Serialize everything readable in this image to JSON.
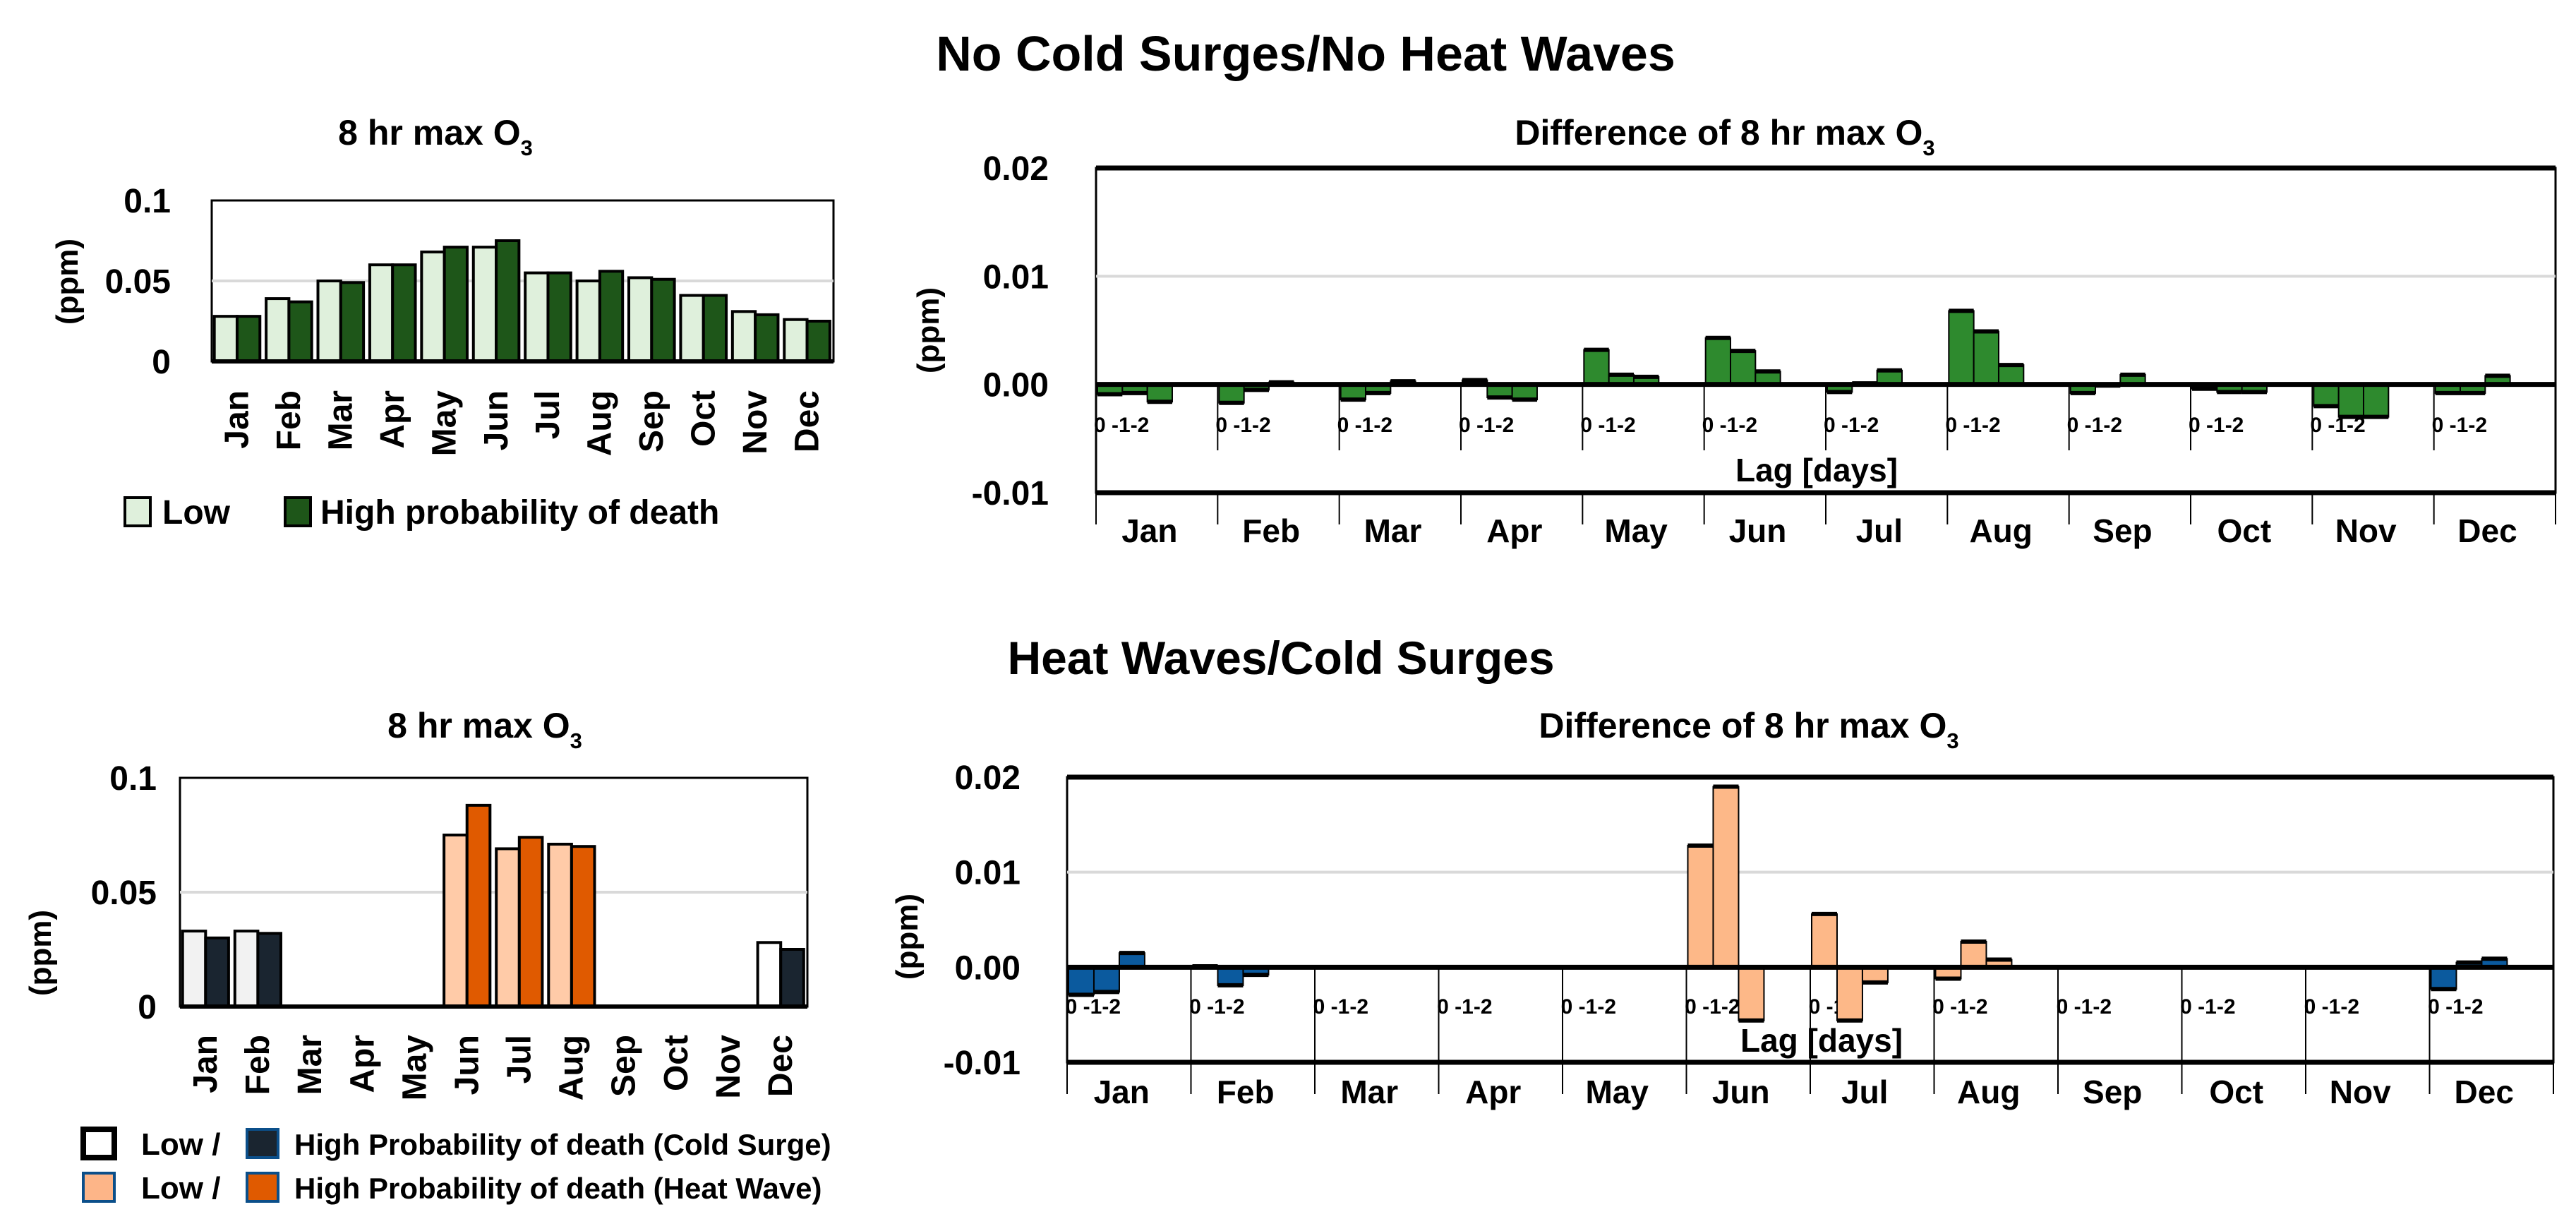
{
  "headings": {
    "top": "No Cold Surges/No Heat Waves",
    "bottom": "Heat Waves/Cold Surges"
  },
  "chart_data": [
    {
      "type": "bar",
      "title": "8 hr max O",
      "title_sub": "3",
      "ylabel": "(ppm)",
      "ylim": [
        0,
        0.1
      ],
      "yticks": [
        0,
        0.05,
        0.1
      ],
      "ytick_labels": [
        "0",
        "0.05",
        "0.1"
      ],
      "grid": [
        0.05
      ],
      "categories": [
        "Jan",
        "Feb",
        "Mar",
        "Apr",
        "May",
        "Jun",
        "Jul",
        "Aug",
        "Sep",
        "Oct",
        "Nov",
        "Dec"
      ],
      "series": [
        {
          "name": "Low",
          "color": "#dff0dc",
          "values": [
            0.028,
            0.039,
            0.05,
            0.06,
            0.068,
            0.071,
            0.055,
            0.05,
            0.052,
            0.041,
            0.031,
            0.026
          ]
        },
        {
          "name": "High probability of death",
          "color": "#1e5619",
          "values": [
            0.028,
            0.037,
            0.049,
            0.06,
            0.071,
            0.075,
            0.055,
            0.056,
            0.051,
            0.041,
            0.029,
            0.025
          ]
        }
      ],
      "legend": {
        "placement": "bottom",
        "items": [
          "Low",
          "High probability of death"
        ]
      }
    },
    {
      "type": "bar",
      "title": "Difference of 8 hr max O",
      "title_sub": "3",
      "ylabel": "(ppm)",
      "xlabel": "Lag [days]",
      "lag_label": "0 -1-2",
      "ylim": [
        -0.01,
        0.02
      ],
      "yticks": [
        -0.01,
        0,
        0.01,
        0.02
      ],
      "ytick_labels": [
        "-0.01",
        "0.00",
        "0.01",
        "0.02"
      ],
      "grid": [
        0.01
      ],
      "categories": [
        "Jan",
        "Feb",
        "Mar",
        "Apr",
        "May",
        "Jun",
        "Jul",
        "Aug",
        "Sep",
        "Oct",
        "Nov",
        "Dec"
      ],
      "bar_colors": [
        "#2e8a2e",
        "#2e8a2e",
        "#2e8a2e",
        "#2e8a2e",
        "#2e8a2e",
        "#2e8a2e",
        "#2e8a2e",
        "#2e8a2e",
        "#2e8a2e",
        "#2e8a2e",
        "#2e8a2e",
        "#2e8a2e"
      ],
      "series": [
        {
          "name": "Lag 0",
          "values": [
            -0.0009,
            -0.0017,
            -0.0014,
            0.0004,
            0.0032,
            0.0043,
            -0.0007,
            0.0068,
            -0.0008,
            -0.0004,
            -0.002,
            -0.0008
          ]
        },
        {
          "name": "Lag 1",
          "values": [
            -0.0008,
            -0.0005,
            -0.0008,
            -0.0012,
            0.0009,
            0.0031,
            0.0001,
            0.0049,
            -0.0001,
            -0.0007,
            -0.003,
            -0.0008
          ]
        },
        {
          "name": "Lag 2",
          "values": [
            -0.0016,
            0.0002,
            0.0003,
            -0.0014,
            0.0007,
            0.0012,
            0.0013,
            0.0018,
            0.0009,
            -0.0007,
            -0.003,
            0.0008
          ]
        }
      ]
    },
    {
      "type": "bar",
      "title": "8 hr max O",
      "title_sub": "3",
      "ylabel": "(ppm)",
      "ylim": [
        0,
        0.1
      ],
      "yticks": [
        0,
        0.05,
        0.1
      ],
      "ytick_labels": [
        "0",
        "0.05",
        "0.1"
      ],
      "grid": [
        0.05
      ],
      "categories": [
        "Jan",
        "Feb",
        "Mar",
        "Apr",
        "May",
        "Jun",
        "Jul",
        "Aug",
        "Sep",
        "Oct",
        "Nov",
        "Dec"
      ],
      "low_colors": [
        "#f2f2f2",
        "#f2f2f2",
        null,
        null,
        null,
        "#ffcba8",
        "#ffcba8",
        "#ffcba8",
        null,
        null,
        null,
        "#ffffff"
      ],
      "high_colors": [
        "#1a2530",
        "#1a2530",
        null,
        null,
        null,
        "#e05a00",
        "#e05a00",
        "#e05a00",
        null,
        null,
        null,
        "#1a2530"
      ],
      "series": [
        {
          "name": "Low",
          "values": [
            0.033,
            0.033,
            null,
            null,
            null,
            0.075,
            0.069,
            0.071,
            null,
            null,
            null,
            0.028
          ]
        },
        {
          "name": "High",
          "values": [
            0.03,
            0.032,
            null,
            null,
            null,
            0.088,
            0.074,
            0.07,
            null,
            null,
            null,
            0.025
          ]
        }
      ],
      "legend": {
        "placement": "bottom",
        "rows": [
          {
            "low": "Low /",
            "high": "High Probability of death (Cold Surge)",
            "low_color": "#ffffff",
            "high_color": "#1a2530"
          },
          {
            "low": "Low /",
            "high": "High Probability of death (Heat Wave)",
            "low_color": "#fdb588",
            "high_color": "#e05a00"
          }
        ]
      }
    },
    {
      "type": "bar",
      "title": "Difference of 8 hr max O",
      "title_sub": "3",
      "ylabel": "(ppm)",
      "xlabel": "Lag [days]",
      "lag_label": "0 -1-2",
      "ylim": [
        -0.01,
        0.02
      ],
      "yticks": [
        -0.01,
        0,
        0.01,
        0.02
      ],
      "ytick_labels": [
        "-0.01",
        "0.00",
        "0.01",
        "0.02"
      ],
      "grid": [
        0.01
      ],
      "categories": [
        "Jan",
        "Feb",
        "Mar",
        "Apr",
        "May",
        "Jun",
        "Jul",
        "Aug",
        "Sep",
        "Oct",
        "Nov",
        "Dec"
      ],
      "bar_colors": [
        "#0b5a9e",
        "#0b5a9e",
        null,
        null,
        null,
        "#fdb888",
        "#fdb888",
        "#fdb888",
        null,
        null,
        null,
        "#0b5a9e"
      ],
      "series": [
        {
          "name": "Lag 0",
          "values": [
            -0.0029,
            0.0001,
            null,
            null,
            null,
            0.0128,
            0.0056,
            -0.0012,
            null,
            null,
            null,
            -0.0023
          ]
        },
        {
          "name": "Lag 1",
          "values": [
            -0.0026,
            -0.0019,
            null,
            null,
            null,
            0.019,
            -0.0056,
            0.0027,
            null,
            null,
            null,
            0.0005
          ]
        },
        {
          "name": "Lag 2",
          "values": [
            0.0015,
            -0.0008,
            null,
            null,
            null,
            -0.0056,
            -0.0016,
            0.0008,
            null,
            null,
            null,
            0.0009
          ]
        }
      ]
    }
  ]
}
